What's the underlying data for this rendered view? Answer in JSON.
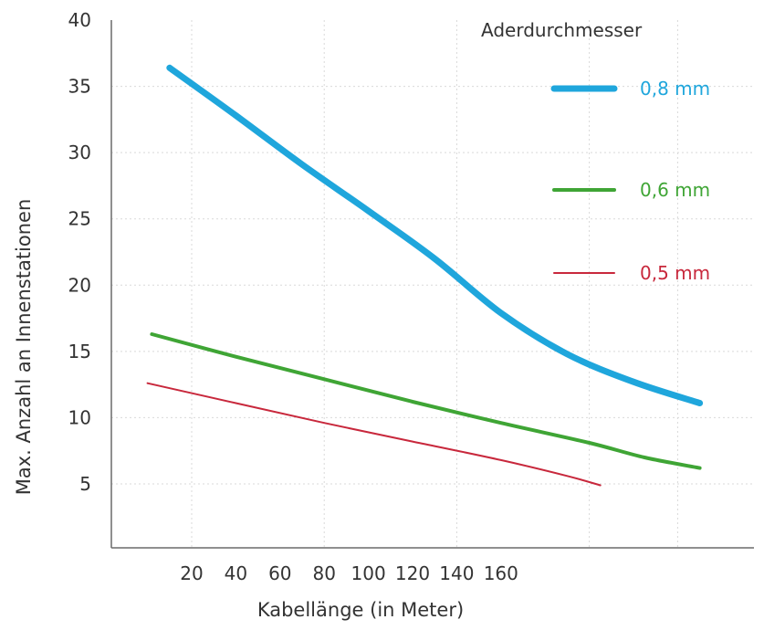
{
  "chart_data": {
    "type": "line",
    "title": "",
    "xlabel": "Kabellänge (in Meter)",
    "ylabel": "Max. Anzahl an Innenstationen",
    "x_ticks": [
      "20",
      "40",
      "60",
      "80",
      "100",
      "120",
      "140",
      "160"
    ],
    "y_ticks": [
      "40",
      "35",
      "30",
      "25",
      "20",
      "15",
      "10",
      "5"
    ],
    "ylim": [
      0,
      40
    ],
    "legend_title": "Aderdurchmesser",
    "legend_position": "top-right",
    "grid": true,
    "series": [
      {
        "name": "0,8 mm",
        "color": "#1fa6dc",
        "line_weight": "thick",
        "points": [
          [
            10,
            36.4
          ],
          [
            40,
            32.8
          ],
          [
            70,
            29.1
          ],
          [
            100,
            25.6
          ],
          [
            130,
            22.0
          ],
          [
            160,
            17.9
          ],
          [
            190,
            14.8
          ],
          [
            220,
            12.7
          ],
          [
            250,
            11.1
          ]
        ]
      },
      {
        "name": "0,6 mm",
        "color": "#3fa535",
        "line_weight": "medium",
        "points": [
          [
            2,
            16.3
          ],
          [
            40,
            14.6
          ],
          [
            80,
            12.9
          ],
          [
            120,
            11.2
          ],
          [
            160,
            9.6
          ],
          [
            200,
            8.1
          ],
          [
            225,
            7.0
          ],
          [
            250,
            6.2
          ]
        ]
      },
      {
        "name": "0,5 mm",
        "color": "#c8283c",
        "line_weight": "thin",
        "points": [
          [
            0,
            12.6
          ],
          [
            40,
            11.1
          ],
          [
            80,
            9.6
          ],
          [
            120,
            8.2
          ],
          [
            160,
            6.8
          ],
          [
            190,
            5.6
          ],
          [
            205,
            4.9
          ]
        ]
      }
    ]
  }
}
